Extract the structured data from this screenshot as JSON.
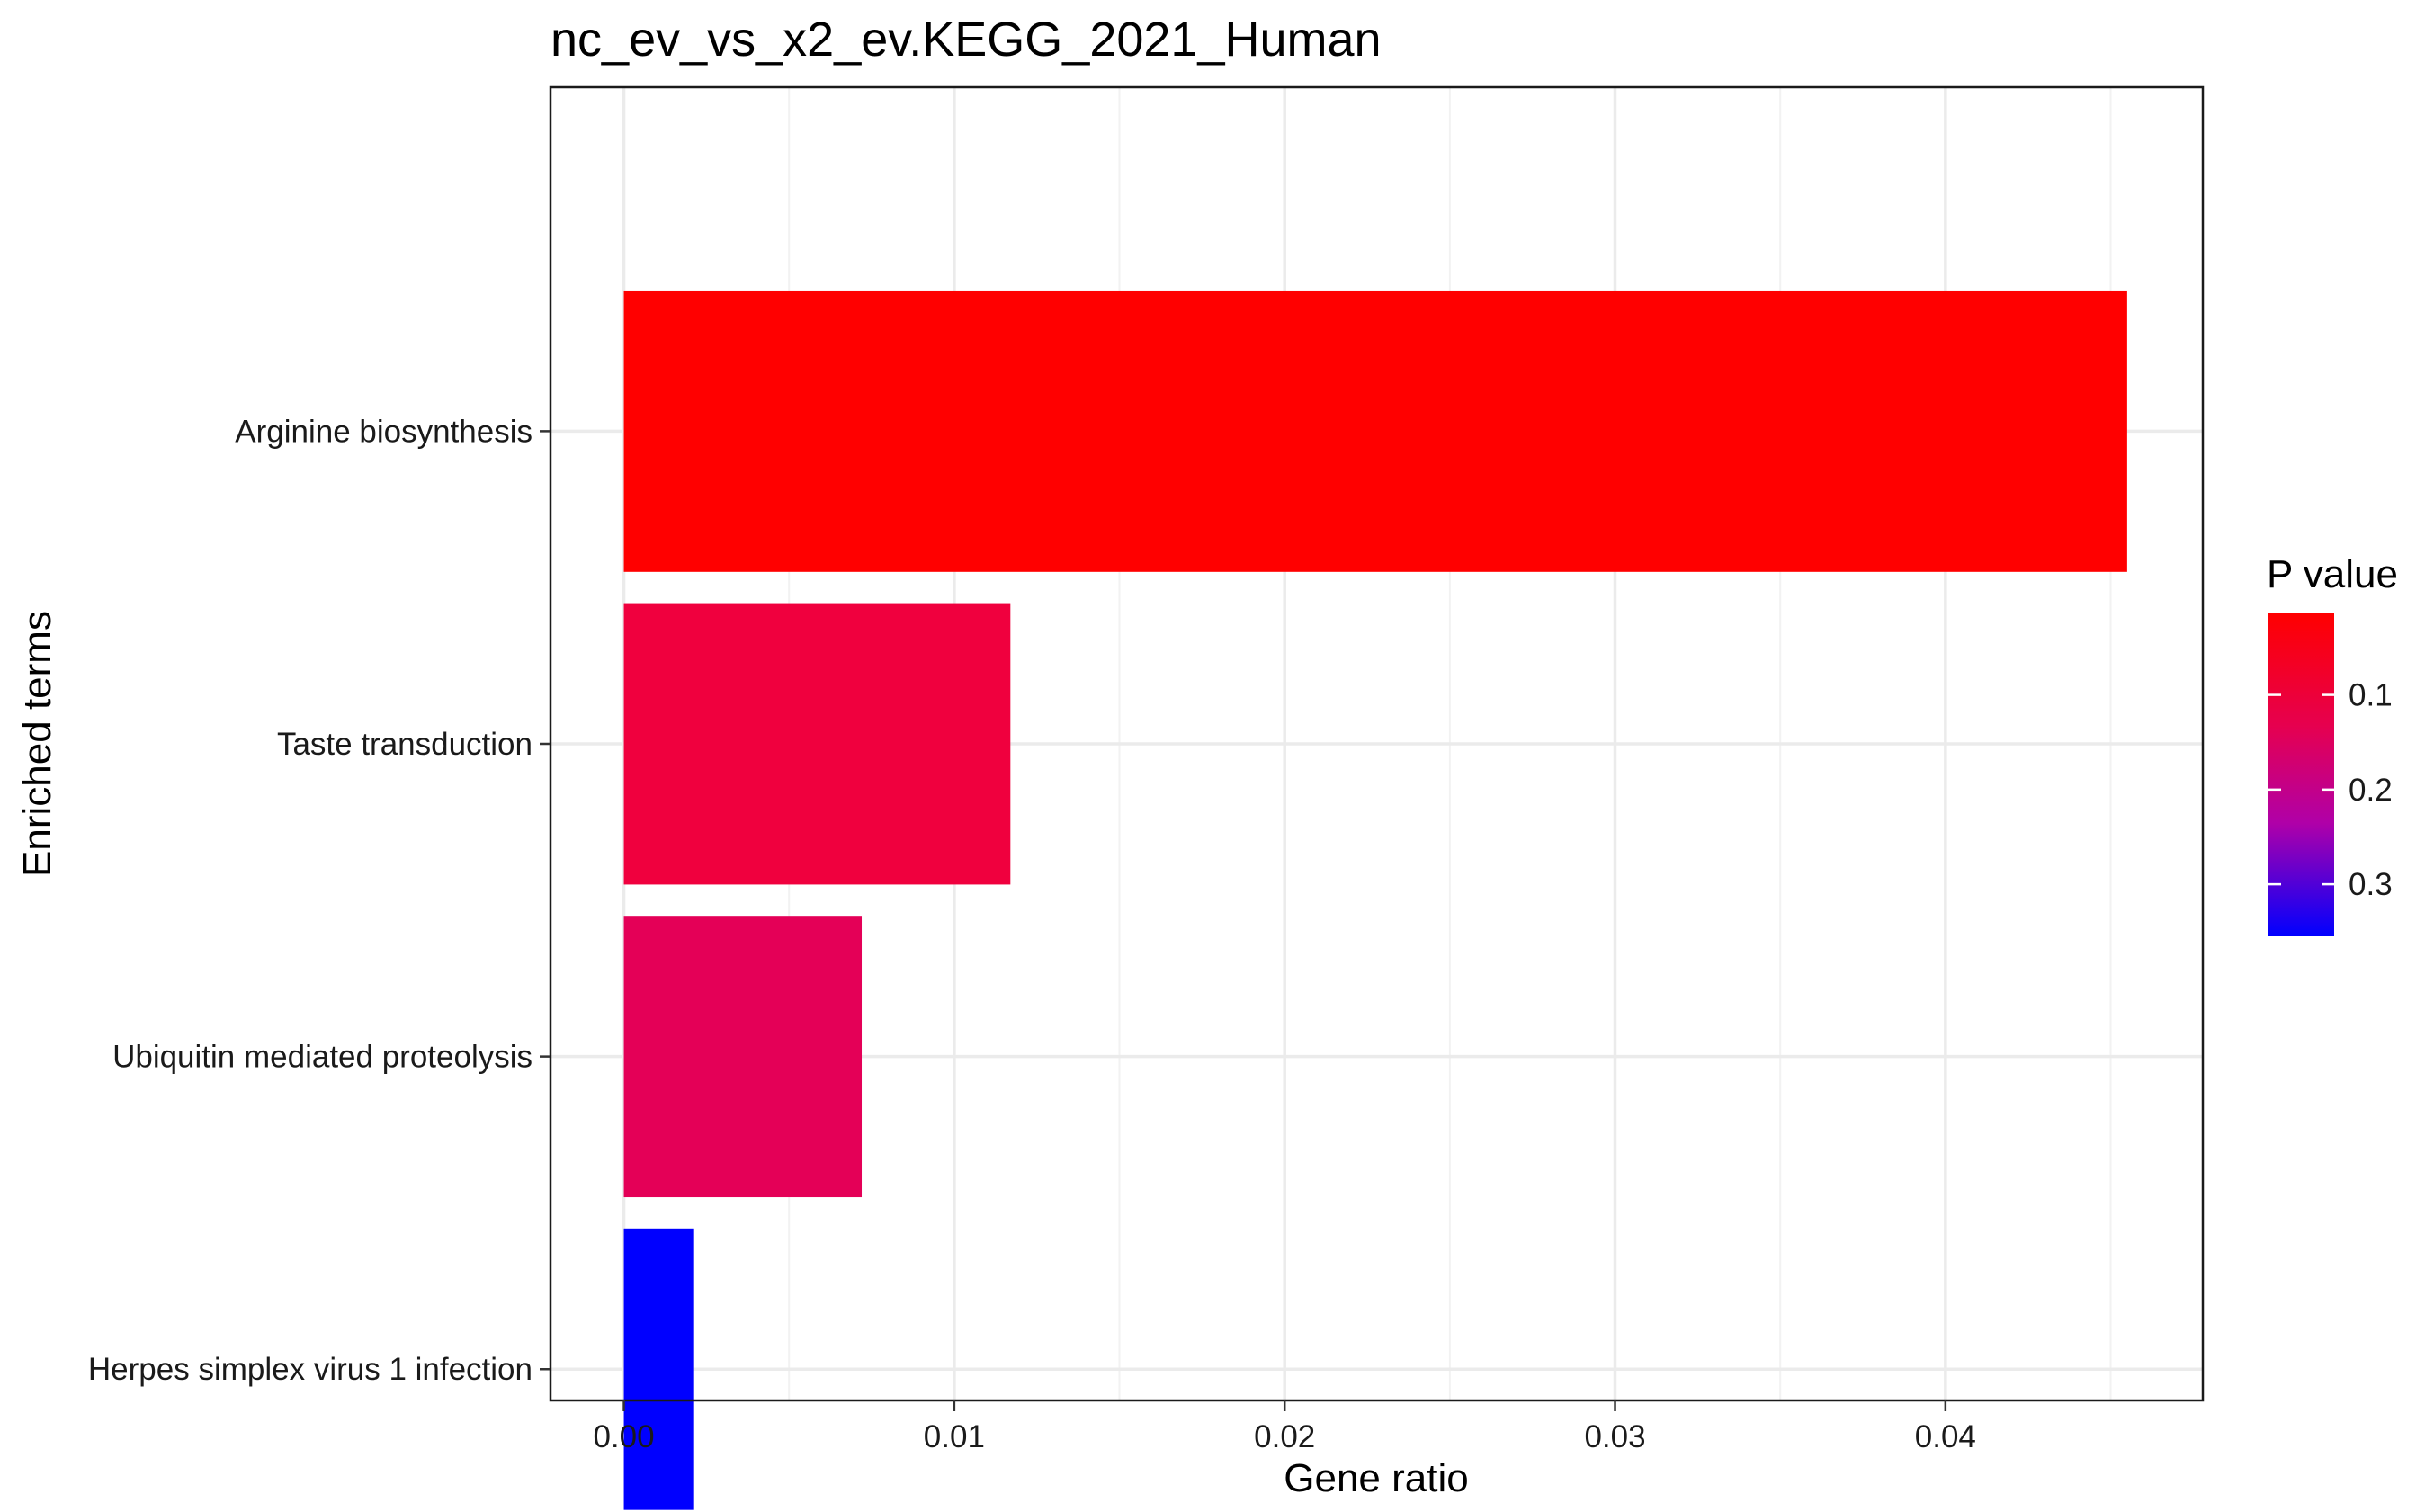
{
  "chart_data": {
    "type": "bar",
    "orientation": "horizontal",
    "title": "nc_ev_vs_x2_ev.KEGG_2021_Human",
    "xlabel": "Gene ratio",
    "ylabel": "Enriched terms",
    "xlim": [
      -0.00222,
      0.04779
    ],
    "xticks": [
      0.0,
      0.01,
      0.02,
      0.03,
      0.04
    ],
    "xtick_labels": [
      "0.00",
      "0.01",
      "0.02",
      "0.03",
      "0.04"
    ],
    "grid": true,
    "categories": [
      "Arginine biosynthesis",
      "Taste transduction",
      "Ubiquitin mediated proteolysis",
      "Herpes simplex virus 1 infection"
    ],
    "values": [
      0.0455,
      0.0117,
      0.0072,
      0.0021
    ],
    "pvalues": [
      0.013,
      0.065,
      0.095,
      0.355
    ],
    "bar_colors": [
      "#ff0000",
      "#f0003e",
      "#e40057",
      "#0000ff"
    ],
    "legend": {
      "title": "P value",
      "position": "right",
      "type": "colorbar",
      "low_color": "#ff0000",
      "high_color": "#0000ff",
      "range": [
        0.013,
        0.355
      ],
      "ticks": [
        0.1,
        0.2,
        0.3
      ],
      "tick_labels": [
        "0.1",
        "0.2",
        "0.3"
      ]
    }
  }
}
